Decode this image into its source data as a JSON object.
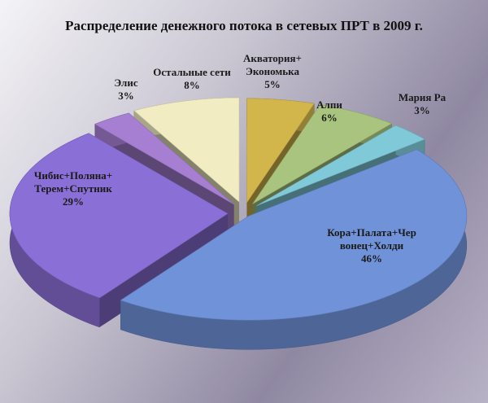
{
  "chart_data": {
    "type": "pie3d",
    "title": "Распределение денежного потока в сетевых ПРТ в 2009 г.",
    "categories": [
      "Акватория+\nЭкономька",
      "Алпи",
      "Мария Ра",
      "Кора+Палата+Чер\nвонец+Холди",
      "Чибис+Поляна+\nТерем+Спутник",
      "Элис",
      "Остальные сети"
    ],
    "values": [
      5,
      6,
      3,
      46,
      29,
      3,
      8
    ],
    "value_labels": [
      "5%",
      "6%",
      "3%",
      "46%",
      "29%",
      "3%",
      "8%"
    ],
    "colors": [
      "#d2b64c",
      "#a8c47e",
      "#7fc9d9",
      "#6f92d8",
      "#8a6fd6",
      "#a67fd2",
      "#f1ecc2"
    ]
  }
}
